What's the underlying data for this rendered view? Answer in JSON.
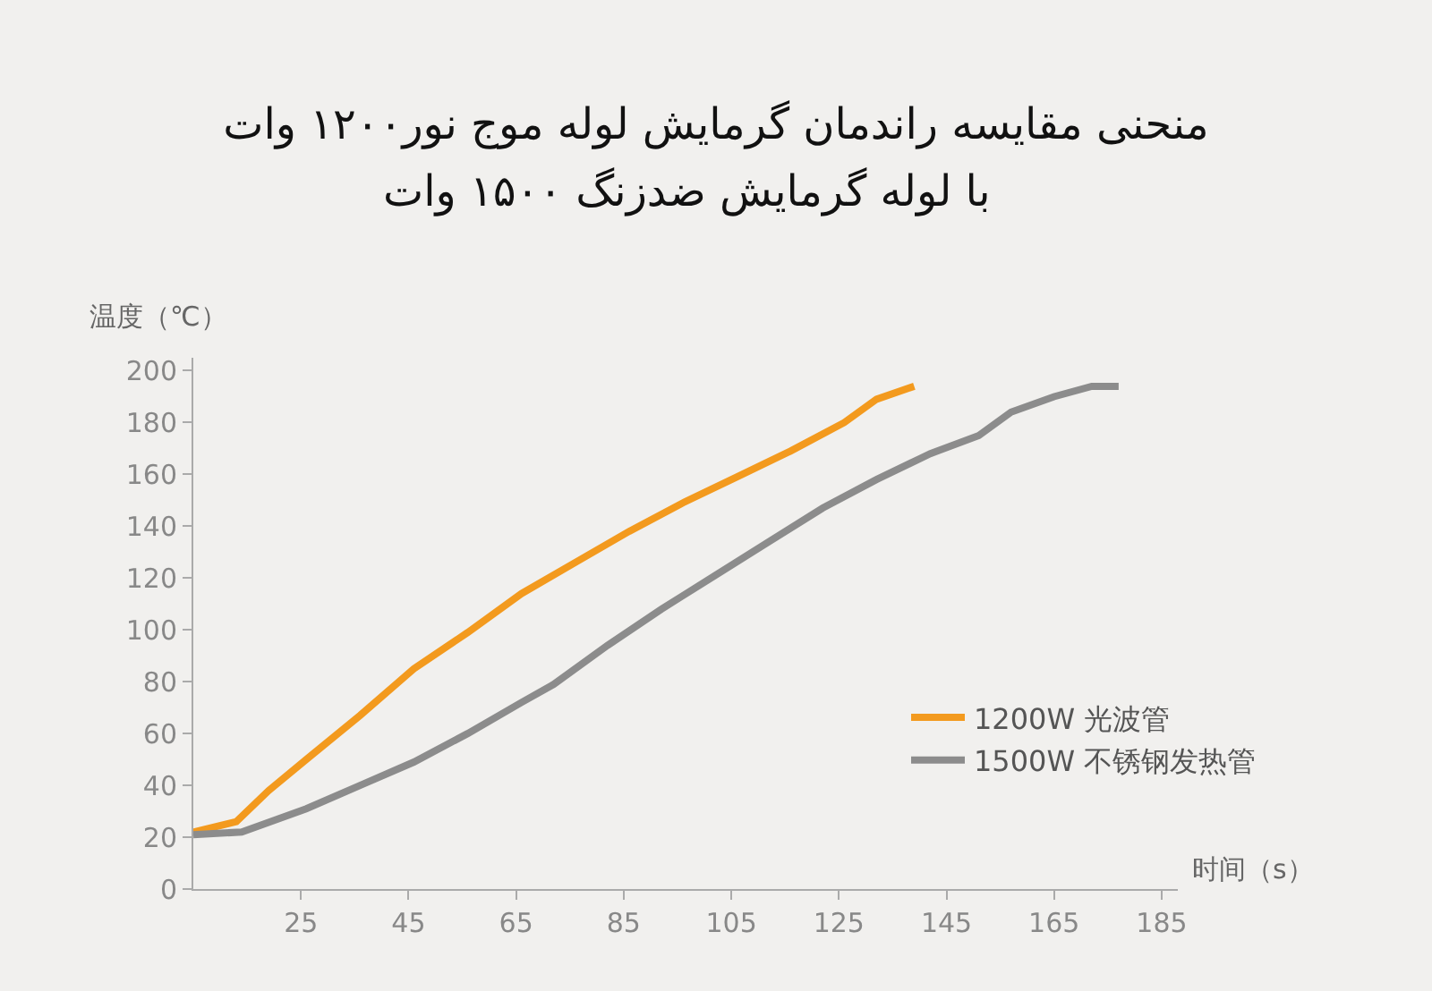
{
  "chart_data": {
    "type": "line",
    "title": "منحنی مقایسه راندمان گرمایش لوله موج نور۱۲۰۰ وات",
    "subtitle": "با لوله گرمایش ضدزنگ ۱۵۰۰ وات",
    "xlabel": "时间（s）",
    "ylabel": "温度（℃）",
    "xlim": [
      5,
      188
    ],
    "xticks": [
      25,
      45,
      65,
      85,
      105,
      125,
      145,
      165,
      185
    ],
    "ylim": [
      0,
      205
    ],
    "yticks": [
      0,
      20,
      40,
      60,
      80,
      100,
      120,
      140,
      160,
      180,
      200
    ],
    "grid": false,
    "legend": "bottom right",
    "marker": "none",
    "line_style": "solid",
    "series": [
      {
        "name": "1200W 光波管",
        "color": "#f39a1e",
        "x": [
          5,
          13,
          19,
          26,
          36,
          46,
          56,
          66,
          76,
          86,
          96,
          106,
          116,
          126,
          132,
          139
        ],
        "values": [
          22,
          26,
          38,
          50,
          67,
          85,
          99,
          114,
          126,
          138,
          149,
          159,
          169,
          180,
          189,
          194
        ]
      },
      {
        "name": "1500W 不锈钢发热管",
        "color": "#8c8c8c",
        "x": [
          5,
          14,
          26,
          36,
          46,
          56,
          66,
          72,
          82,
          92,
          102,
          112,
          122,
          132,
          142,
          151,
          157,
          165,
          172,
          177
        ],
        "values": [
          21,
          22,
          31,
          40,
          49,
          60,
          72,
          79,
          94,
          108,
          121,
          134,
          147,
          158,
          168,
          175,
          184,
          190,
          194,
          194
        ]
      }
    ]
  }
}
